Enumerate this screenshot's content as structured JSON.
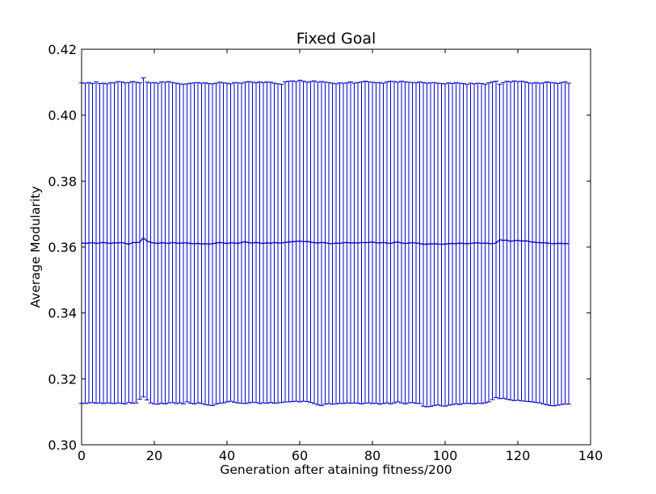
{
  "chart_data": {
    "type": "line",
    "title": "Fixed Goal",
    "xlabel": "Generation after ataining fitness/200",
    "ylabel": "Average Modularity",
    "xlim": [
      0,
      140
    ],
    "ylim": [
      0.3,
      0.42
    ],
    "xticks": [
      "0",
      "20",
      "40",
      "60",
      "80",
      "100",
      "120",
      "140"
    ],
    "yticks": [
      "0.30",
      "0.32",
      "0.34",
      "0.36",
      "0.38",
      "0.40",
      "0.42"
    ],
    "grid": false,
    "legend": "none",
    "color": "#0000cc",
    "series": [
      {
        "x": [
          0,
          1,
          2,
          3,
          4,
          5,
          6,
          7,
          8,
          9,
          10,
          11,
          12,
          13,
          14,
          15,
          16,
          17,
          18,
          19,
          20,
          21,
          22,
          23,
          24,
          25,
          26,
          27,
          28,
          29,
          30,
          31,
          32,
          33,
          34,
          35,
          36,
          37,
          38,
          39,
          40,
          41,
          42,
          43,
          44,
          45,
          46,
          47,
          48,
          49,
          50,
          51,
          52,
          53,
          54,
          55,
          56,
          57,
          58,
          59,
          60,
          61,
          62,
          63,
          64,
          65,
          66,
          67,
          68,
          69,
          70,
          71,
          72,
          73,
          74,
          75,
          76,
          77,
          78,
          79,
          80,
          81,
          82,
          83,
          84,
          85,
          86,
          87,
          88,
          89,
          90,
          91,
          92,
          93,
          94,
          95,
          96,
          97,
          98,
          99,
          100,
          101,
          102,
          103,
          104,
          105,
          106,
          107,
          108,
          109,
          110,
          111,
          112,
          113,
          114,
          115,
          116,
          117,
          118,
          119,
          120,
          121,
          122,
          123,
          124,
          125,
          126,
          127,
          128,
          129,
          130,
          131,
          132,
          133,
          134
        ],
        "mean": [
          0.3612,
          0.3611,
          0.3612,
          0.3613,
          0.3611,
          0.3612,
          0.3614,
          0.3612,
          0.3611,
          0.3613,
          0.3612,
          0.3614,
          0.3611,
          0.3608,
          0.3614,
          0.3613,
          0.3615,
          0.3628,
          0.3618,
          0.3614,
          0.3612,
          0.3611,
          0.3613,
          0.3612,
          0.3611,
          0.3614,
          0.3612,
          0.3611,
          0.3613,
          0.3612,
          0.3611,
          0.361,
          0.3611,
          0.3609,
          0.361,
          0.3609,
          0.361,
          0.3612,
          0.3614,
          0.3612,
          0.3611,
          0.3613,
          0.3612,
          0.3611,
          0.3614,
          0.3616,
          0.3613,
          0.3612,
          0.3614,
          0.3612,
          0.3611,
          0.3613,
          0.3611,
          0.3614,
          0.3612,
          0.3612,
          0.3614,
          0.3615,
          0.3616,
          0.3617,
          0.3618,
          0.3616,
          0.3617,
          0.3615,
          0.3613,
          0.3612,
          0.3614,
          0.3613,
          0.3611,
          0.361,
          0.3612,
          0.3611,
          0.3613,
          0.3614,
          0.3612,
          0.3613,
          0.3612,
          0.3614,
          0.3613,
          0.3614,
          0.3615,
          0.3613,
          0.3612,
          0.3614,
          0.3612,
          0.3611,
          0.3614,
          0.3615,
          0.3612,
          0.3611,
          0.3612,
          0.3613,
          0.3612,
          0.3611,
          0.3608,
          0.3609,
          0.3609,
          0.361,
          0.3609,
          0.3608,
          0.3609,
          0.361,
          0.3611,
          0.361,
          0.3612,
          0.3611,
          0.361,
          0.3611,
          0.3612,
          0.3613,
          0.3611,
          0.3612,
          0.3611,
          0.361,
          0.3612,
          0.3622,
          0.362,
          0.3621,
          0.3617,
          0.3619,
          0.362,
          0.3618,
          0.3619,
          0.3617,
          0.3615,
          0.3614,
          0.3613,
          0.3613,
          0.3612,
          0.3611,
          0.361,
          0.3611,
          0.3611,
          0.361,
          0.3611
        ],
        "upper": [
          0.4098,
          0.4097,
          0.4099,
          0.4096,
          0.4101,
          0.4096,
          0.4097,
          0.4095,
          0.4099,
          0.4098,
          0.4102,
          0.4101,
          0.4098,
          0.4099,
          0.4102,
          0.41,
          0.4098,
          0.4113,
          0.41,
          0.4098,
          0.4099,
          0.4097,
          0.4101,
          0.41,
          0.4102,
          0.4099,
          0.4097,
          0.4095,
          0.4094,
          0.4095,
          0.4097,
          0.4098,
          0.4099,
          0.4097,
          0.4098,
          0.4096,
          0.4095,
          0.4097,
          0.41,
          0.4098,
          0.4097,
          0.4095,
          0.4099,
          0.4098,
          0.4097,
          0.41,
          0.4102,
          0.41,
          0.4098,
          0.4101,
          0.4099,
          0.4101,
          0.41,
          0.4097,
          0.4095,
          0.4094,
          0.4101,
          0.4103,
          0.4104,
          0.4102,
          0.4106,
          0.4103,
          0.41,
          0.4102,
          0.4104,
          0.41,
          0.4102,
          0.41,
          0.4099,
          0.4097,
          0.4095,
          0.4098,
          0.4097,
          0.4098,
          0.4101,
          0.4097,
          0.4099,
          0.4101,
          0.4103,
          0.4101,
          0.41,
          0.4098,
          0.4099,
          0.4097,
          0.4101,
          0.4103,
          0.4102,
          0.41,
          0.4103,
          0.4101,
          0.41,
          0.4099,
          0.4098,
          0.4101,
          0.4099,
          0.4097,
          0.4098,
          0.4099,
          0.4097,
          0.4096,
          0.4095,
          0.4098,
          0.4096,
          0.4099,
          0.4097,
          0.4096,
          0.4093,
          0.4097,
          0.4095,
          0.4097,
          0.4096,
          0.4094,
          0.4098,
          0.4101,
          0.4103,
          0.4094,
          0.4099,
          0.4103,
          0.4101,
          0.4104,
          0.4102,
          0.4103,
          0.4101,
          0.4098,
          0.4097,
          0.4099,
          0.4097,
          0.4098,
          0.4101,
          0.4099,
          0.4098,
          0.4096,
          0.4099,
          0.4101,
          0.4097
        ],
        "lower": [
          0.3126,
          0.3125,
          0.3127,
          0.3128,
          0.3126,
          0.3127,
          0.3125,
          0.3127,
          0.3126,
          0.3125,
          0.3127,
          0.3126,
          0.3124,
          0.3128,
          0.3126,
          0.3127,
          0.3138,
          0.3145,
          0.3136,
          0.3127,
          0.3124,
          0.3123,
          0.3126,
          0.3124,
          0.3127,
          0.3128,
          0.3125,
          0.3127,
          0.3124,
          0.313,
          0.3126,
          0.3124,
          0.3127,
          0.3125,
          0.3122,
          0.312,
          0.3119,
          0.3123,
          0.3126,
          0.3127,
          0.313,
          0.3132,
          0.3129,
          0.3127,
          0.3126,
          0.3125,
          0.3127,
          0.3129,
          0.3128,
          0.3125,
          0.3127,
          0.3126,
          0.3128,
          0.3126,
          0.3127,
          0.3128,
          0.313,
          0.313,
          0.3131,
          0.3132,
          0.313,
          0.3132,
          0.3131,
          0.3128,
          0.3125,
          0.3121,
          0.3119,
          0.3123,
          0.3125,
          0.3123,
          0.3124,
          0.3126,
          0.3125,
          0.3127,
          0.3126,
          0.3127,
          0.3126,
          0.3124,
          0.3126,
          0.3127,
          0.3125,
          0.3126,
          0.3123,
          0.3125,
          0.3127,
          0.3124,
          0.3127,
          0.313,
          0.3127,
          0.3124,
          0.3127,
          0.3128,
          0.3126,
          0.3125,
          0.3117,
          0.3115,
          0.3116,
          0.3119,
          0.3121,
          0.3118,
          0.3117,
          0.312,
          0.3122,
          0.3124,
          0.3122,
          0.3125,
          0.3126,
          0.3125,
          0.3124,
          0.3126,
          0.3125,
          0.3127,
          0.313,
          0.3137,
          0.3143,
          0.314,
          0.3141,
          0.3138,
          0.3136,
          0.3134,
          0.3135,
          0.3133,
          0.3132,
          0.3131,
          0.313,
          0.3128,
          0.3127,
          0.3124,
          0.3121,
          0.3119,
          0.3118,
          0.312,
          0.3122,
          0.3124,
          0.3123
        ]
      }
    ]
  }
}
